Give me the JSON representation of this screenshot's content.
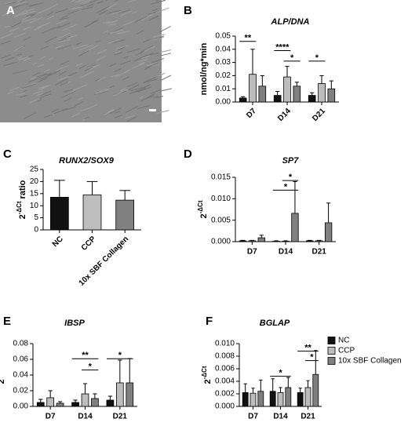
{
  "chart_data": [
    {
      "type": "image",
      "panel": "A"
    },
    {
      "type": "bar",
      "panel": "B",
      "title": "ALP/DNA",
      "y_label": "nmol/ng*min",
      "categories": [
        "D7",
        "D14",
        "D21"
      ],
      "series": [
        {
          "color": "#111111",
          "values": [
            0.003,
            0.005,
            0.005
          ],
          "errors": [
            0.001,
            0.003,
            0.002
          ]
        },
        {
          "color": "#bdbdbd",
          "values": [
            0.021,
            0.019,
            0.014
          ],
          "errors": [
            0.019,
            0.008,
            0.006
          ]
        },
        {
          "color": "#808080",
          "values": [
            0.012,
            0.012,
            0.01
          ],
          "errors": [
            0.008,
            0.003,
            0.006
          ]
        }
      ],
      "ylim": [
        0,
        0.05
      ],
      "yticks": [
        {
          "value": 0,
          "label": "0.00"
        },
        0.01,
        0.02,
        0.03,
        0.04,
        0.05
      ],
      "annotations": [
        "**",
        "****",
        "*",
        "*"
      ]
    },
    {
      "type": "bar",
      "panel": "C",
      "title": "RUNX2/SOX9",
      "y_label": {
        "base": "2",
        "exponent": "-ΔCt",
        "suffix": "ratio"
      },
      "categories": [
        "NC",
        "CCP",
        "10x SBF Collagen"
      ],
      "series": [
        {
          "colors": [
            "#111111",
            "#bdbdbd",
            "#808080"
          ],
          "values": [
            13.5,
            14.5,
            12.3
          ],
          "errors": [
            7,
            5.5,
            4
          ]
        }
      ],
      "ylim": [
        0,
        25
      ],
      "yticks": [
        0,
        5,
        10,
        15,
        20,
        25
      ],
      "annotations": []
    },
    {
      "type": "bar",
      "panel": "D",
      "title": "SP7",
      "y_label": {
        "base": "2",
        "exponent": "-ΔCt"
      },
      "categories": [
        "D7",
        "D14",
        "D21"
      ],
      "series": [
        {
          "color": "#111111",
          "values": [
            0.0002,
            0.0001,
            0.0002
          ],
          "errors": [
            0.0001,
            0.0001,
            0.0001
          ]
        },
        {
          "color": "#bdbdbd",
          "values": [
            0.0002,
            0.0001,
            0.0002
          ],
          "errors": [
            0.0001,
            0.0001,
            0.0001
          ]
        },
        {
          "color": "#808080",
          "values": [
            0.0009,
            0.0066,
            0.0044
          ],
          "errors": [
            0.0006,
            0.0074,
            0.0046
          ]
        }
      ],
      "ylim": [
        0,
        0.015
      ],
      "yticks": [
        {
          "value": 0,
          "label": "0.000"
        },
        0.005,
        {
          "value": 0.01,
          "label": "0.010"
        },
        0.015
      ],
      "annotations": [
        "*",
        "*"
      ]
    },
    {
      "type": "bar",
      "panel": "E",
      "title": "IBSP",
      "y_label": {
        "base": "2",
        "exponent": "-ΔCt"
      },
      "categories": [
        "D7",
        "D14",
        "D21"
      ],
      "series": [
        {
          "color": "#111111",
          "values": [
            0.005,
            0.005,
            0.008
          ],
          "errors": [
            0.004,
            0.003,
            0.005
          ]
        },
        {
          "color": "#bdbdbd",
          "values": [
            0.011,
            0.016,
            0.03
          ],
          "errors": [
            0.009,
            0.013,
            0.029
          ]
        },
        {
          "color": "#808080",
          "values": [
            0.004,
            0.01,
            0.03
          ],
          "errors": [
            0.002,
            0.006,
            0.031
          ]
        }
      ],
      "ylim": [
        0,
        0.08
      ],
      "yticks": [
        {
          "value": 0,
          "label": "0.00"
        },
        0.02,
        0.04,
        0.06,
        0.08
      ],
      "annotations": [
        "**",
        "*",
        "*"
      ]
    },
    {
      "type": "bar",
      "panel": "F",
      "title": "BGLAP",
      "y_label": {
        "base": "2",
        "exponent": "-ΔCt"
      },
      "categories": [
        "D7",
        "D14",
        "D21"
      ],
      "series": [
        {
          "name": "NC",
          "color": "#111111",
          "values": [
            0.0022,
            0.0024,
            0.0022
          ],
          "errors": [
            0.0014,
            0.002,
            0.0007
          ]
        },
        {
          "name": "CCP",
          "color": "#bdbdbd",
          "values": [
            0.0021,
            0.0022,
            0.003
          ],
          "errors": [
            0.0008,
            0.0008,
            0.0011
          ]
        },
        {
          "name": "10x SBF Collagen",
          "color": "#808080",
          "values": [
            0.0024,
            0.003,
            0.0051
          ],
          "errors": [
            0.0018,
            0.0016,
            0.0038
          ]
        }
      ],
      "ylim": [
        0,
        0.01
      ],
      "yticks": [
        {
          "value": 0,
          "label": "0.000"
        },
        0.002,
        0.004,
        0.006,
        0.008,
        {
          "value": 0.01,
          "label": "0.010"
        }
      ],
      "legend": "right",
      "annotations": [
        "*",
        "**",
        "*"
      ]
    }
  ]
}
